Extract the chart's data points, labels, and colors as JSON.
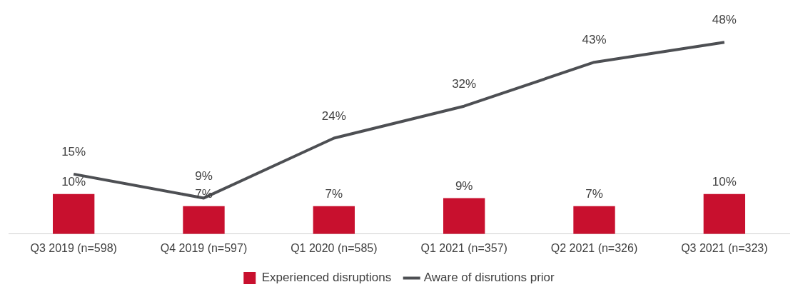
{
  "chart_data": {
    "type": "bar",
    "categories": [
      "Q3 2019 (n=598)",
      "Q4 2019 (n=597)",
      "Q1 2020 (n=585)",
      "Q1 2021 (n=357)",
      "Q2 2021 (n=326)",
      "Q3 2021 (n=323)"
    ],
    "legend": "bottom",
    "grid": false,
    "series": [
      {
        "name": "Experienced disruptions",
        "type": "bar",
        "color": "#c8102e",
        "values": [
          10,
          7,
          7,
          9,
          7,
          10
        ],
        "value_labels": [
          "10%",
          "7%",
          "7%",
          "9%",
          "7%",
          "10%"
        ]
      },
      {
        "name": "Aware of disrutions prior",
        "type": "line",
        "color": "#4d4f53",
        "values": [
          15,
          9,
          24,
          32,
          43,
          48
        ],
        "value_labels": [
          "15%",
          "9%",
          "24%",
          "32%",
          "43%",
          "48%"
        ]
      }
    ]
  }
}
